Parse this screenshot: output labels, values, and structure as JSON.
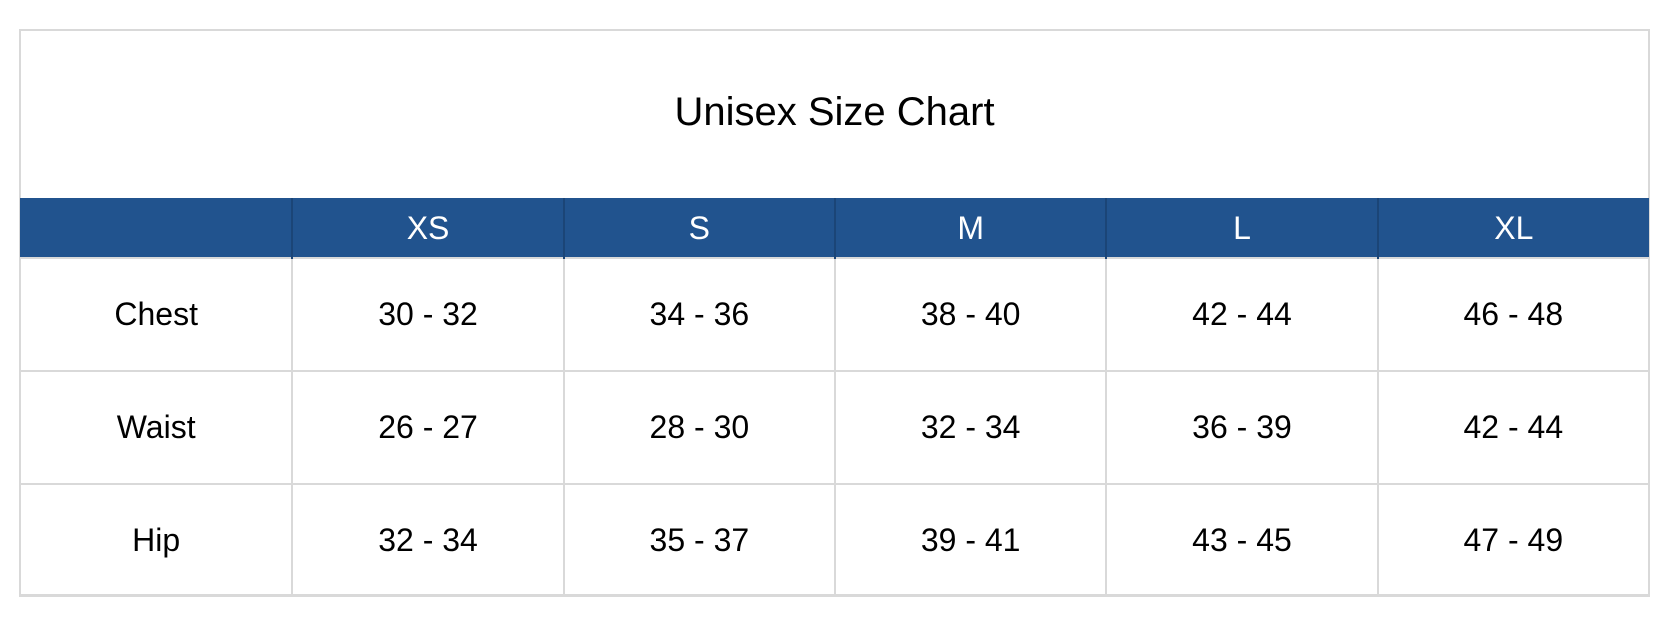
{
  "title": "Unisex Size Chart",
  "colors": {
    "header_background": "#21538e",
    "header_text": "#ffffff",
    "grid_lines": "#d9d9d9"
  },
  "columns": [
    "",
    "XS",
    "S",
    "M",
    "L",
    "XL"
  ],
  "rows": [
    {
      "label": "Chest",
      "values": [
        "30 - 32",
        "34 - 36",
        "38 - 40",
        "42 - 44",
        "46 - 48"
      ]
    },
    {
      "label": "Waist",
      "values": [
        "26 - 27",
        "28 - 30",
        "32 - 34",
        "36 - 39",
        "42 - 44"
      ]
    },
    {
      "label": "Hip",
      "values": [
        "32 - 34",
        "35 - 37",
        "39 - 41",
        "43 - 45",
        "47 - 49"
      ]
    }
  ],
  "chart_data": {
    "type": "table",
    "title": "Unisex Size Chart",
    "columns": [
      "XS",
      "S",
      "M",
      "L",
      "XL"
    ],
    "rows": [
      {
        "label": "Chest",
        "values": [
          "30 - 32",
          "34 - 36",
          "38 - 40",
          "42 - 44",
          "46 - 48"
        ]
      },
      {
        "label": "Waist",
        "values": [
          "26 - 27",
          "28 - 30",
          "32 - 34",
          "36 - 39",
          "42 - 44"
        ]
      },
      {
        "label": "Hip",
        "values": [
          "32 - 34",
          "35 - 37",
          "39 - 41",
          "43 - 45",
          "47 - 49"
        ]
      }
    ]
  }
}
